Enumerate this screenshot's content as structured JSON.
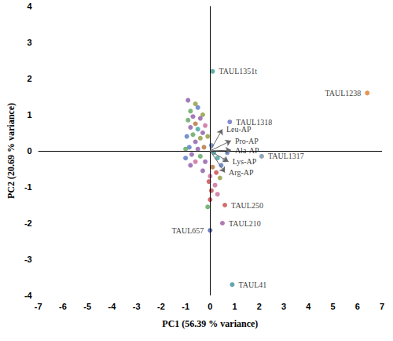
{
  "chart_data": {
    "type": "scatter",
    "xlabel": "PC1 (56.39 % variance)",
    "ylabel": "PC2 (20.69 % variance)",
    "xlim": [
      -7,
      7
    ],
    "xticks": [
      -7,
      -6,
      -5,
      -4,
      -3,
      -2,
      -1,
      0,
      1,
      2,
      3,
      4,
      5,
      6,
      7
    ],
    "ylim": [
      -4,
      4
    ],
    "yticks": [
      -4,
      -3,
      -2,
      -1,
      0,
      1,
      2,
      3,
      4
    ],
    "grid": false,
    "x": [
      0.1,
      6.4,
      0.8,
      2.1,
      0.6,
      0.5,
      0.0,
      0.9,
      -0.9,
      -0.6,
      -0.5,
      -0.8,
      -0.3,
      -0.7,
      -0.4,
      -0.9,
      -0.6,
      -0.2,
      -0.8,
      -0.5,
      -0.3,
      -0.7,
      -0.95,
      -0.4,
      -0.1,
      -0.6,
      -0.85,
      -1.0,
      -0.5,
      -0.25,
      0.05,
      0.15,
      -0.75,
      -0.4,
      -1.0,
      -0.6,
      -0.2,
      0.3,
      -0.8,
      0.1,
      0.25,
      0.0,
      0.4,
      -0.05,
      0.2,
      0.05,
      0.3,
      0.0,
      -0.1,
      0.45,
      0.6,
      -0.3,
      0.7
    ],
    "values": [
      2.2,
      1.6,
      0.8,
      -0.15,
      -1.5,
      -2.0,
      -2.2,
      -3.7,
      1.4,
      1.3,
      1.2,
      1.1,
      1.0,
      0.95,
      0.9,
      0.85,
      0.75,
      0.7,
      0.65,
      0.6,
      0.5,
      0.45,
      0.4,
      0.35,
      0.4,
      0.25,
      0.1,
      0.05,
      0.05,
      0.1,
      0.15,
      -0.05,
      -0.1,
      -0.15,
      -0.2,
      -0.3,
      -0.3,
      -0.2,
      -0.4,
      -0.45,
      -0.6,
      -0.7,
      -0.75,
      -0.85,
      -0.95,
      -1.1,
      -1.2,
      -1.35,
      -1.55,
      -0.4,
      -0.25,
      -0.55,
      -0.05
    ],
    "colors": [
      "#3a9e8f",
      "#e07b28",
      "#6a6fc4",
      "#7a8fa6",
      "#c44a4a",
      "#9a5aa0",
      "#4a5fb0",
      "#3a90a0",
      "#8c5aa8",
      "#8f9a3c",
      "#5577c0",
      "#5aa55a",
      "#8f9a3c",
      "#8c5aa8",
      "#8c5aa8",
      "#5aa55a",
      "#b0703a",
      "#c86a98",
      "#8c5aa8",
      "#3fa0a0",
      "#8c5aa8",
      "#5aa55a",
      "#5577c0",
      "#8f9a3c",
      "#8f9a3c",
      "#8c5aa8",
      "#5577c0",
      "#5aa55a",
      "#8c5aa8",
      "#b0703a",
      "#5577c0",
      "#3fa0a0",
      "#8c5aa8",
      "#5aa55a",
      "#5577c0",
      "#c86a98",
      "#8c5aa8",
      "#3fa0a0",
      "#8c5aa8",
      "#b0703a",
      "#c8464a",
      "#c86a98",
      "#8f9a3c",
      "#c8464a",
      "#c86a98",
      "#c8464a",
      "#c86a98",
      "#c8464a",
      "#5aa55a",
      "#5577c0",
      "#7a8fa6",
      "#8c5aa8",
      "#5577c0"
    ],
    "point_labels": [
      "TAUL1351t",
      "TAUL1238",
      "TAUL1318",
      "TAUL1317",
      "TAUL250",
      "TAUL210",
      "TAUL657",
      "TAUL41",
      null,
      null,
      null,
      null,
      null,
      null,
      null,
      null,
      null,
      null,
      null,
      null,
      null,
      null,
      null,
      null,
      null,
      null,
      null,
      null,
      null,
      null,
      null,
      null,
      null,
      null,
      null,
      null,
      null,
      null,
      null,
      null,
      null,
      null,
      null,
      null,
      null,
      null,
      null,
      null,
      null,
      null,
      null,
      null,
      null
    ],
    "loadings": {
      "names": [
        "Leu-AP",
        "Pro-AP",
        "Ala-AP",
        "Lys-AP",
        "Arg-AP"
      ],
      "x": [
        0.5,
        0.85,
        0.85,
        0.75,
        0.6
      ],
      "y": [
        0.6,
        0.28,
        0.02,
        -0.3,
        -0.6
      ]
    }
  }
}
